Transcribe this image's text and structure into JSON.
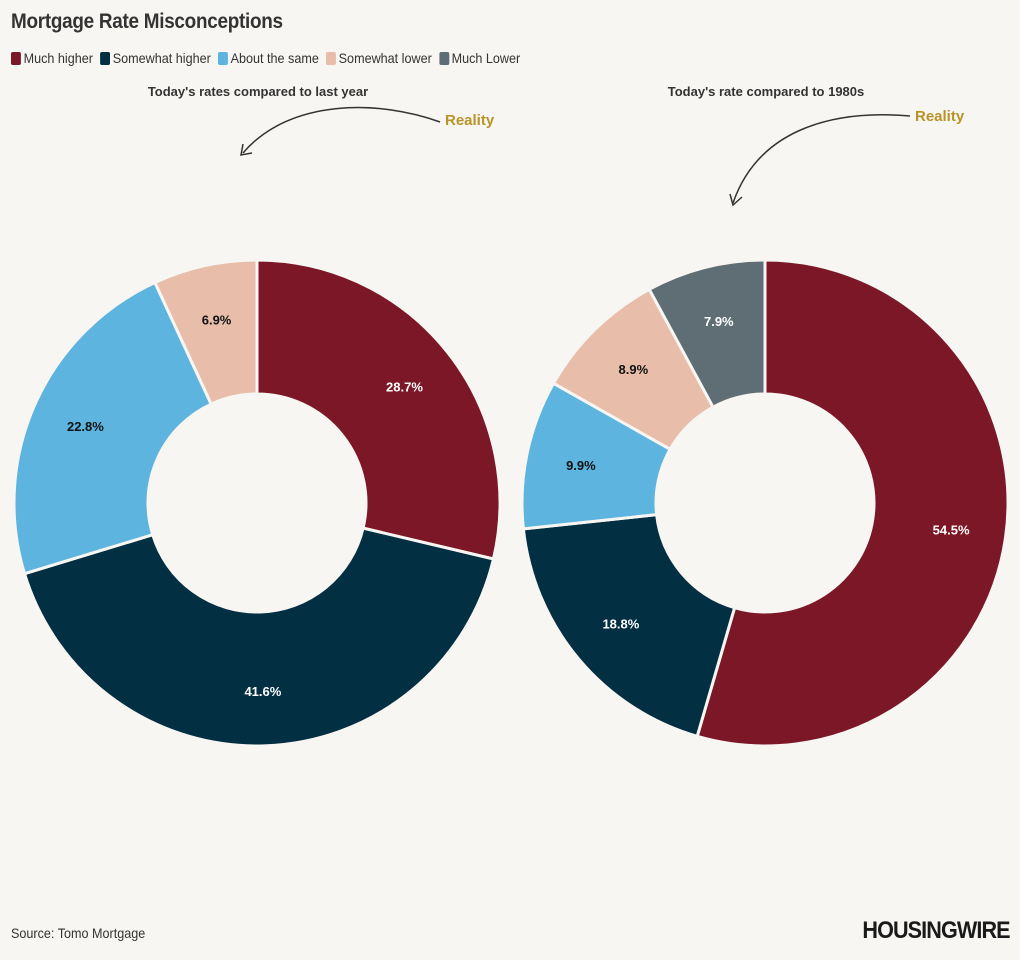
{
  "title": "Mortgage Rate Misconceptions",
  "legend": [
    {
      "label": "Much higher",
      "color": "#7c1727"
    },
    {
      "label": "Somewhat higher",
      "color": "#032f43"
    },
    {
      "label": "About the same",
      "color": "#5db4df"
    },
    {
      "label": "Somewhat lower",
      "color": "#e8bdaa"
    },
    {
      "label": "Much Lower",
      "color": "#5f6e74"
    }
  ],
  "chart_data": [
    {
      "type": "pie",
      "title": "Today's rates compared to last year",
      "annotation": "Reality",
      "categories": [
        "Much higher",
        "Somewhat higher",
        "About the same",
        "Somewhat lower"
      ],
      "values": [
        28.7,
        41.6,
        22.8,
        6.9
      ],
      "labels": [
        "28.7%",
        "41.6%",
        "22.8%",
        "6.9%"
      ],
      "colors": [
        "#7c1727",
        "#032f43",
        "#5db4df",
        "#e8bdaa"
      ],
      "label_colors": [
        "#ffffff",
        "#ffffff",
        "#111111",
        "#111111"
      ]
    },
    {
      "type": "pie",
      "title": "Today's rate compared to 1980s",
      "annotation": "Reality",
      "categories": [
        "Much higher",
        "Somewhat higher",
        "About the same",
        "Somewhat lower",
        "Much Lower"
      ],
      "values": [
        54.5,
        18.8,
        9.9,
        8.9,
        7.9
      ],
      "labels": [
        "54.5%",
        "18.8%",
        "9.9%",
        "8.9%",
        "7.9%"
      ],
      "colors": [
        "#7c1727",
        "#032f43",
        "#5db4df",
        "#e8bdaa",
        "#5f6e74"
      ],
      "label_colors": [
        "#ffffff",
        "#ffffff",
        "#111111",
        "#111111",
        "#ffffff"
      ]
    }
  ],
  "source": "Source: Tomo Mortgage",
  "logo": "HOUSINGWIRE"
}
